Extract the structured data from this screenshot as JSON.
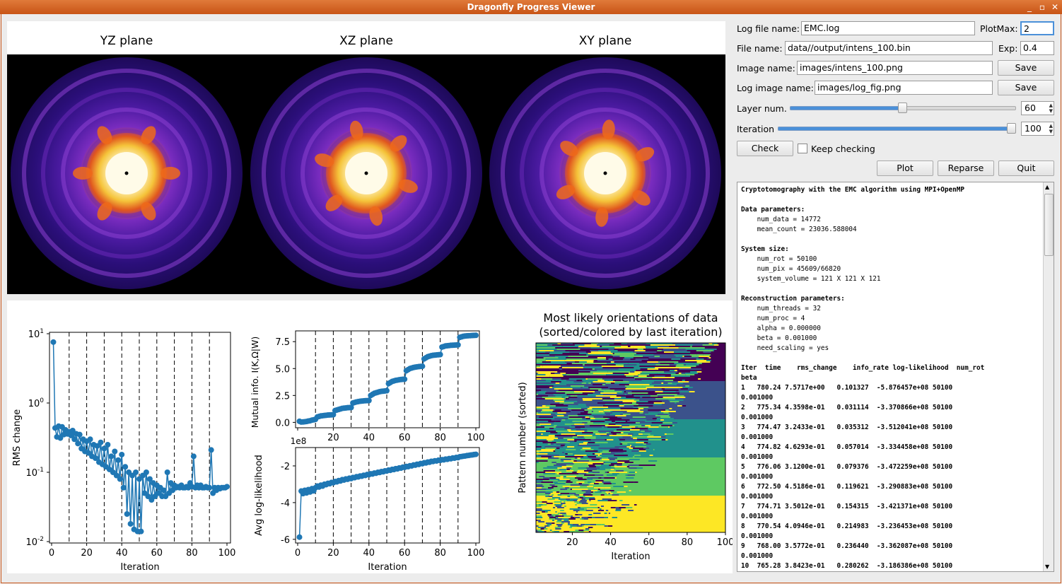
{
  "window": {
    "title": "Dragonfly Progress Viewer"
  },
  "volume_panel": {
    "titles": [
      "YZ plane",
      "XZ plane",
      "XY plane"
    ],
    "colors": {
      "background": "#000000",
      "outer": "#2b0f7a",
      "mid": "#7a2cbf",
      "ring": "#e0561e",
      "core": "#fff3c2"
    }
  },
  "form": {
    "log_file_label": "Log file name:",
    "log_file_value": "EMC.log",
    "plotmax_label": "PlotMax:",
    "plotmax_value": "2",
    "file_name_label": "File name:",
    "file_name_value": "data//output/intens_100.bin",
    "exp_label": "Exp:",
    "exp_value": "0.4",
    "image_name_label": "Image name:",
    "image_name_value": "images/intens_100.png",
    "log_image_label": "Log image name:",
    "log_image_value": "images/log_fig.png",
    "save_label": "Save",
    "layer_label": "Layer num.",
    "layer_value": "60",
    "iteration_label": "Iteration",
    "iteration_value": "100",
    "check_label": "Check",
    "keep_checking_label": "Keep checking",
    "plot_label": "Plot",
    "reparse_label": "Reparse",
    "quit_label": "Quit"
  },
  "sliders": {
    "layer_fraction": 0.5,
    "iteration_fraction": 1.0
  },
  "log_lines": [
    "Cryptotomography with the EMC algorithm using MPI+OpenMP",
    "",
    "Data parameters:",
    "    num_data = 14772",
    "    mean_count = 23036.588004",
    "",
    "System size:",
    "    num_rot = 50100",
    "    num_pix = 45609/66820",
    "    system_volume = 121 X 121 X 121",
    "",
    "Reconstruction parameters:",
    "    num_threads = 32",
    "    num_proc = 4",
    "    alpha = 0.000000",
    "    beta = 0.001000",
    "    need_scaling = yes",
    "",
    "Iter  time    rms_change    info_rate log-likelihood  num_rot",
    "beta",
    "1   780.24 7.5717e+00   0.101327  -5.876457e+08 50100",
    "0.001000",
    "2   775.34 4.3598e-01   0.031114  -3.370866e+08 50100",
    "0.001000",
    "3   774.47 3.2433e-01   0.035312  -3.512041e+08 50100",
    "0.001000",
    "4   774.82 4.6293e-01   0.057014  -3.334458e+08 50100",
    "0.001000",
    "5   776.06 3.1200e-01   0.079376  -3.472259e+08 50100",
    "0.001000",
    "6   772.50 4.5186e-01   0.119621  -3.290883e+08 50100",
    "0.001000",
    "7   774.71 3.5012e-01   0.154315  -3.421371e+08 50100",
    "0.001000",
    "8   770.54 4.0946e-01   0.214983  -3.236453e+08 50100",
    "0.001000",
    "9   768.00 3.5772e-01   0.236440  -3.362087e+08 50100",
    "0.001000",
    "10  765.28 3.8423e-01   0.280262  -3.186386e+08 50100"
  ],
  "chart_data": [
    {
      "type": "scatter",
      "ylabel": "RMS change",
      "xlabel": "Iteration",
      "yscale": "log",
      "ylim": [
        0.01,
        10
      ],
      "xlim": [
        0,
        100
      ],
      "xticks": [
        "0",
        "20",
        "40",
        "60",
        "80",
        "100"
      ],
      "yticks": [
        "10^1",
        "10^0",
        "10^-1",
        "10^-2"
      ],
      "vlines": [
        10,
        20,
        30,
        40,
        50,
        60,
        70,
        80,
        90
      ],
      "x": [
        1,
        2,
        3,
        4,
        5,
        6,
        7,
        8,
        9,
        10,
        11,
        12,
        13,
        14,
        15,
        16,
        17,
        18,
        19,
        20,
        21,
        22,
        23,
        24,
        25,
        26,
        27,
        28,
        29,
        30,
        31,
        32,
        33,
        34,
        35,
        36,
        37,
        38,
        39,
        40,
        41,
        42,
        43,
        44,
        45,
        46,
        47,
        48,
        49,
        50,
        51,
        52,
        53,
        54,
        55,
        56,
        57,
        58,
        59,
        60,
        61,
        62,
        63,
        64,
        65,
        66,
        67,
        68,
        69,
        70,
        71,
        72,
        73,
        74,
        75,
        76,
        77,
        78,
        79,
        80,
        81,
        82,
        83,
        84,
        85,
        86,
        87,
        88,
        89,
        90,
        91,
        92,
        93,
        94,
        95,
        96,
        97,
        98,
        99,
        100
      ],
      "y": [
        7.57,
        0.436,
        0.324,
        0.463,
        0.312,
        0.452,
        0.35,
        0.409,
        0.358,
        0.384,
        0.34,
        0.4,
        0.3,
        0.36,
        0.26,
        0.35,
        0.22,
        0.3,
        0.2,
        0.28,
        0.19,
        0.3,
        0.17,
        0.25,
        0.16,
        0.24,
        0.14,
        0.27,
        0.13,
        0.22,
        0.12,
        0.25,
        0.11,
        0.17,
        0.1,
        0.2,
        0.09,
        0.15,
        0.08,
        0.18,
        0.06,
        0.12,
        0.025,
        0.1,
        0.018,
        0.09,
        0.015,
        0.1,
        0.014,
        0.08,
        0.014,
        0.09,
        0.05,
        0.1,
        0.045,
        0.08,
        0.04,
        0.07,
        0.045,
        0.065,
        0.05,
        0.06,
        0.045,
        0.055,
        0.045,
        0.1,
        0.05,
        0.07,
        0.055,
        0.065,
        0.06,
        0.062,
        0.06,
        0.065,
        0.06,
        0.06,
        0.062,
        0.06,
        0.07,
        0.062,
        0.17,
        0.06,
        0.065,
        0.06,
        0.065,
        0.06,
        0.06,
        0.062,
        0.06,
        0.06,
        0.21,
        0.05,
        0.06,
        0.055,
        0.06,
        0.058,
        0.06,
        0.06,
        0.06,
        0.062
      ]
    },
    {
      "type": "scatter",
      "ylabel": "Mutual info. I(K,Ω|W)",
      "xlabel": "",
      "xlim": [
        0,
        100
      ],
      "ylim": [
        -0.5,
        8.5
      ],
      "yticks": [
        "0.0",
        "2.5",
        "5.0",
        "7.5"
      ],
      "vlines": [
        10,
        20,
        30,
        40,
        50,
        60,
        70,
        80,
        90
      ],
      "x": [
        1,
        2,
        3,
        4,
        5,
        6,
        7,
        8,
        9,
        10,
        11,
        12,
        13,
        14,
        15,
        16,
        17,
        18,
        19,
        20,
        21,
        22,
        23,
        24,
        25,
        26,
        27,
        28,
        29,
        30,
        31,
        32,
        33,
        34,
        35,
        36,
        37,
        38,
        39,
        40,
        41,
        42,
        43,
        44,
        45,
        46,
        47,
        48,
        49,
        50,
        51,
        52,
        53,
        54,
        55,
        56,
        57,
        58,
        59,
        60,
        61,
        62,
        63,
        64,
        65,
        66,
        67,
        68,
        69,
        70,
        71,
        72,
        73,
        74,
        75,
        76,
        77,
        78,
        79,
        80,
        81,
        82,
        83,
        84,
        85,
        86,
        87,
        88,
        89,
        90,
        91,
        92,
        93,
        94,
        95,
        96,
        97,
        98,
        99,
        100
      ],
      "y": [
        0.1,
        0.03,
        0.04,
        0.06,
        0.08,
        0.12,
        0.15,
        0.21,
        0.24,
        0.28,
        0.5,
        0.55,
        0.6,
        0.62,
        0.64,
        0.66,
        0.68,
        0.69,
        0.7,
        0.71,
        1.1,
        1.15,
        1.2,
        1.25,
        1.3,
        1.32,
        1.34,
        1.36,
        1.37,
        1.38,
        1.8,
        1.85,
        1.9,
        1.93,
        1.96,
        1.98,
        2.0,
        2.01,
        2.02,
        2.03,
        2.5,
        2.6,
        2.7,
        2.75,
        2.8,
        2.85,
        2.88,
        2.9,
        2.92,
        2.94,
        3.6,
        3.7,
        3.8,
        3.85,
        3.9,
        3.93,
        3.96,
        3.98,
        4.0,
        4.01,
        4.8,
        4.9,
        5.0,
        5.05,
        5.1,
        5.13,
        5.16,
        5.18,
        5.2,
        5.21,
        5.9,
        6.0,
        6.1,
        6.15,
        6.2,
        6.23,
        6.25,
        6.27,
        6.28,
        6.3,
        7.0,
        7.05,
        7.1,
        7.12,
        7.14,
        7.16,
        7.17,
        7.18,
        7.19,
        7.2,
        7.9,
        7.95,
        8.0,
        8.02,
        8.04,
        8.05,
        8.06,
        8.07,
        8.08,
        8.09
      ]
    },
    {
      "type": "scatter",
      "ylabel": "Avg log-likelihood",
      "xlabel": "Iteration",
      "xlim": [
        0,
        100
      ],
      "ylim": [
        -6.2,
        -1.0
      ],
      "scale_note": "1e8",
      "xticks": [
        "0",
        "20",
        "40",
        "60",
        "80",
        "100"
      ],
      "yticks": [
        "-2",
        "-4",
        "-6"
      ],
      "vlines": [
        10,
        20,
        30,
        40,
        50,
        60,
        70,
        80,
        90
      ],
      "x": [
        1,
        2,
        3,
        4,
        5,
        6,
        7,
        8,
        9,
        10,
        11,
        12,
        13,
        14,
        15,
        16,
        17,
        18,
        19,
        20,
        21,
        22,
        23,
        24,
        25,
        26,
        27,
        28,
        29,
        30,
        31,
        32,
        33,
        34,
        35,
        36,
        37,
        38,
        39,
        40,
        41,
        42,
        43,
        44,
        45,
        46,
        47,
        48,
        49,
        50,
        51,
        52,
        53,
        54,
        55,
        56,
        57,
        58,
        59,
        60,
        61,
        62,
        63,
        64,
        65,
        66,
        67,
        68,
        69,
        70,
        71,
        72,
        73,
        74,
        75,
        76,
        77,
        78,
        79,
        80,
        81,
        82,
        83,
        84,
        85,
        86,
        87,
        88,
        89,
        90,
        91,
        92,
        93,
        94,
        95,
        96,
        97,
        98,
        99,
        100
      ],
      "y": [
        -5.88,
        -3.37,
        -3.51,
        -3.33,
        -3.47,
        -3.29,
        -3.42,
        -3.24,
        -3.36,
        -3.19,
        -3.1,
        -3.15,
        -3.05,
        -3.1,
        -3.0,
        -3.02,
        -2.95,
        -2.97,
        -2.9,
        -2.92,
        -2.85,
        -2.87,
        -2.8,
        -2.82,
        -2.75,
        -2.77,
        -2.71,
        -2.73,
        -2.67,
        -2.69,
        -2.63,
        -2.64,
        -2.59,
        -2.6,
        -2.55,
        -2.56,
        -2.51,
        -2.52,
        -2.47,
        -2.48,
        -2.43,
        -2.44,
        -2.39,
        -2.4,
        -2.35,
        -2.36,
        -2.31,
        -2.32,
        -2.27,
        -2.28,
        -2.23,
        -2.24,
        -2.19,
        -2.2,
        -2.15,
        -2.16,
        -2.11,
        -2.12,
        -2.07,
        -2.08,
        -2.03,
        -2.04,
        -1.99,
        -2.0,
        -1.95,
        -1.96,
        -1.91,
        -1.92,
        -1.87,
        -1.88,
        -1.83,
        -1.84,
        -1.79,
        -1.8,
        -1.75,
        -1.76,
        -1.72,
        -1.73,
        -1.69,
        -1.7,
        -1.66,
        -1.67,
        -1.63,
        -1.64,
        -1.6,
        -1.61,
        -1.57,
        -1.58,
        -1.54,
        -1.55,
        -1.5,
        -1.49,
        -1.47,
        -1.46,
        -1.44,
        -1.43,
        -1.41,
        -1.4,
        -1.38,
        -1.37
      ]
    },
    {
      "type": "heatmap",
      "title": "Most likely orientations of data\n(sorted/colored by last iteration)",
      "ylabel": "Pattern number (sorted)",
      "xlabel": "Iteration",
      "xticks": [
        "20",
        "40",
        "60",
        "80",
        "100"
      ],
      "colormap": [
        "#440154",
        "#3b528b",
        "#21918c",
        "#5ec962",
        "#fde725"
      ]
    }
  ]
}
